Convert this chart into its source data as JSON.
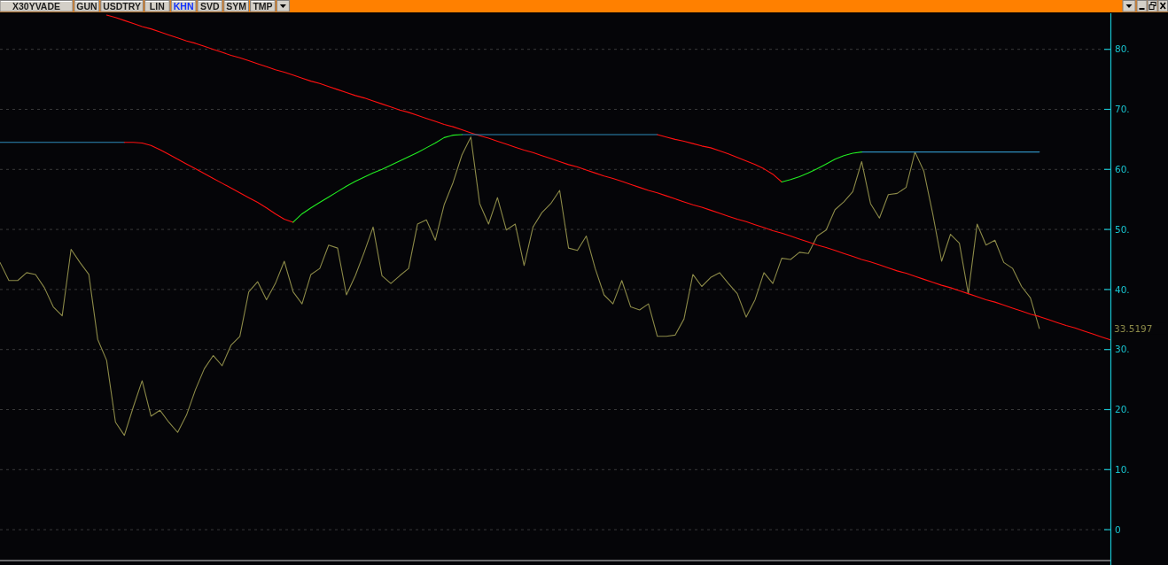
{
  "chart_data": {
    "type": "line",
    "title": "X30YVADE",
    "annotations": [
      "GUN",
      "USDTRY",
      "LIN",
      "KHN",
      "SVD",
      "SYM",
      "TMP",
      "33.5197"
    ],
    "categories": [
      null,
      null,
      null,
      null,
      null,
      null,
      null,
      null,
      null,
      null,
      null,
      null,
      null,
      null,
      null,
      null,
      null,
      null,
      null,
      null,
      null,
      null,
      null,
      null,
      null,
      null,
      null,
      null,
      null,
      null,
      null,
      null,
      null,
      null,
      null,
      null,
      null,
      null,
      null,
      null,
      null,
      null,
      null,
      null,
      null,
      null,
      null,
      null,
      null,
      null,
      null,
      null,
      null,
      null,
      null,
      null,
      null,
      null,
      null,
      null,
      null,
      null,
      null,
      null,
      null,
      null,
      null,
      null,
      null,
      null,
      null,
      null,
      null,
      null,
      null,
      null,
      null,
      null,
      null,
      null,
      null,
      null,
      null,
      null,
      null,
      null,
      null,
      null,
      null,
      null,
      null,
      null,
      null,
      null,
      null,
      null,
      null,
      null,
      null,
      null,
      null,
      null,
      null,
      null,
      null,
      null,
      null,
      null,
      null,
      null,
      null,
      null,
      null,
      null,
      null,
      null,
      null,
      null,
      null,
      null,
      null,
      null,
      null,
      null,
      null,
      null
    ],
    "ylim": [
      -5,
      86
    ],
    "yticks": [
      0,
      {
        "value": 10,
        "label": "10."
      },
      {
        "value": 20,
        "label": "20."
      },
      {
        "value": 30,
        "label": "30."
      },
      {
        "value": 40,
        "label": "40."
      },
      {
        "value": 50,
        "label": "50."
      },
      {
        "value": 60,
        "label": "60."
      },
      {
        "value": 70,
        "label": "70."
      },
      {
        "value": 80,
        "label": "80."
      }
    ],
    "grid": "y",
    "tick_labels": "y",
    "series": [
      {
        "color": "#8c8a48",
        "values": [
          44.5,
          41.5,
          41.5,
          42.8,
          42.5,
          40.3,
          37.1,
          35.6,
          46.7,
          44.5,
          42.5,
          31.7,
          28.2,
          17.9,
          15.7,
          20.4,
          24.8,
          18.9,
          19.9,
          17.9,
          16.2,
          19.1,
          23.3,
          26.8,
          29.0,
          27.3,
          30.7,
          32.2,
          39.6,
          41.3,
          38.3,
          41.0,
          44.7,
          39.6,
          37.6,
          42.5,
          43.5,
          47.4,
          46.9,
          39.1,
          42.3,
          46.2,
          50.4,
          42.3,
          41.0,
          42.3,
          43.5,
          50.9,
          51.6,
          48.2,
          54.1,
          57.8,
          62.4,
          65.4,
          54.3,
          50.9,
          55.3,
          49.9,
          50.9,
          44.0,
          50.4,
          52.8,
          54.3,
          56.5,
          46.9,
          46.5,
          48.9,
          43.5,
          39.1,
          37.6,
          41.5,
          37.1,
          36.6,
          37.6,
          32.2,
          32.2,
          32.4,
          35.1,
          42.5,
          40.5,
          42.0,
          42.8,
          41.0,
          39.3,
          35.4,
          38.3,
          42.8,
          41.0,
          45.2,
          45.0,
          46.2,
          46.0,
          48.9,
          49.9,
          53.3,
          54.6,
          56.3,
          61.3,
          54.3,
          51.9,
          55.8,
          56.0,
          57.0,
          62.9,
          59.7,
          52.6,
          44.7,
          49.2,
          47.7,
          39.3,
          50.9,
          47.4,
          48.2,
          44.5,
          43.5,
          40.5,
          38.6,
          33.5,
          null,
          null,
          null,
          null,
          null,
          null,
          null,
          null
        ]
      },
      {
        "color": "#ff1010",
        "values": [
          null,
          null,
          null,
          null,
          null,
          null,
          null,
          null,
          null,
          null,
          null,
          null,
          85.7,
          85.3,
          84.8,
          84.3,
          83.8,
          83.4,
          82.9,
          82.4,
          81.9,
          81.4,
          81.0,
          80.5,
          80.0,
          79.5,
          79.0,
          78.6,
          78.1,
          77.6,
          77.1,
          76.6,
          76.2,
          75.7,
          75.2,
          74.7,
          74.3,
          73.8,
          73.3,
          72.8,
          72.3,
          71.9,
          71.4,
          70.9,
          70.4,
          69.9,
          69.5,
          69.0,
          68.5,
          68.0,
          67.5,
          67.1,
          66.6,
          66.1,
          65.6,
          65.2,
          64.7,
          64.2,
          63.7,
          63.2,
          62.8,
          62.3,
          61.8,
          61.3,
          60.8,
          60.4,
          59.9,
          59.4,
          58.9,
          58.5,
          58.0,
          57.5,
          57.0,
          56.5,
          56.1,
          55.6,
          55.1,
          54.6,
          54.1,
          53.7,
          53.2,
          52.7,
          52.2,
          51.7,
          51.3,
          50.8,
          50.3,
          49.8,
          49.4,
          48.9,
          48.4,
          47.9,
          47.4,
          47.0,
          46.5,
          46.0,
          45.5,
          45.0,
          44.6,
          44.1,
          43.6,
          43.1,
          42.7,
          42.2,
          41.7,
          41.2,
          40.7,
          40.3,
          39.8,
          39.3,
          38.8,
          38.3,
          37.9,
          37.4,
          36.9,
          36.4,
          35.9,
          35.5,
          35.0,
          34.5,
          34.0,
          33.6,
          33.1,
          32.6,
          32.1,
          31.6
        ]
      },
      {
        "color": "#2f8cba",
        "values": [
          64.5,
          64.5,
          64.5,
          64.5,
          64.5,
          64.5,
          64.5,
          64.5,
          64.5,
          64.5,
          64.5,
          64.5,
          64.5,
          64.5,
          64.5,
          null,
          null,
          null,
          null,
          null,
          null,
          null,
          null,
          null,
          null,
          null,
          null,
          null,
          null,
          null,
          null,
          null,
          null,
          null,
          null,
          null,
          null,
          null,
          null,
          null,
          null,
          null,
          null,
          null,
          null,
          null,
          null,
          null,
          null,
          null,
          null,
          null,
          65.8,
          65.8,
          65.8,
          65.8,
          65.8,
          65.8,
          65.8,
          65.8,
          65.8,
          65.8,
          65.8,
          65.8,
          65.8,
          65.8,
          65.8,
          65.8,
          65.8,
          65.8,
          65.8,
          65.8,
          65.8,
          65.8,
          65.8,
          null,
          null,
          null,
          null,
          null,
          null,
          null,
          null,
          null,
          null,
          null,
          null,
          null,
          null,
          null,
          null,
          null,
          null,
          null,
          null,
          null,
          null,
          62.9,
          62.9,
          62.9,
          62.9,
          62.9,
          62.9,
          62.9,
          62.9,
          62.9,
          62.9,
          62.9,
          62.9,
          62.9,
          62.9,
          62.9,
          62.9,
          62.9,
          62.9,
          62.9,
          62.9,
          62.9,
          null,
          null,
          null,
          null,
          null,
          null,
          null,
          null
        ]
      },
      {
        "color": "#ff1010",
        "values": [
          null,
          null,
          null,
          null,
          null,
          null,
          null,
          null,
          null,
          null,
          null,
          null,
          null,
          null,
          64.5,
          64.5,
          64.4,
          64.0,
          63.3,
          62.5,
          61.7,
          60.9,
          60.1,
          59.3,
          58.5,
          57.7,
          56.9,
          56.1,
          55.3,
          54.5,
          53.6,
          52.6,
          51.7,
          51.2,
          null,
          null,
          null,
          null,
          null,
          null,
          null,
          null,
          null,
          null,
          null,
          null,
          null,
          null,
          null,
          null,
          null,
          null,
          null,
          null,
          null,
          null,
          null,
          null,
          null,
          null,
          null,
          null,
          null,
          null,
          null,
          null,
          null,
          null,
          null,
          null,
          null,
          null,
          null,
          null,
          65.8,
          65.4,
          65.0,
          64.7,
          64.3,
          63.9,
          63.6,
          63.1,
          62.6,
          62.0,
          61.4,
          60.8,
          60.1,
          59.2,
          57.9,
          null,
          null,
          null,
          null,
          null,
          null,
          null,
          null,
          null,
          null,
          null,
          null,
          null,
          null,
          null,
          null,
          null,
          null,
          null,
          null,
          null,
          null,
          null,
          null,
          null,
          null,
          null,
          null,
          null,
          null,
          null,
          null,
          null,
          null,
          null,
          null,
          null
        ]
      },
      {
        "color": "#22ee22",
        "values": [
          null,
          null,
          null,
          null,
          null,
          null,
          null,
          null,
          null,
          null,
          null,
          null,
          null,
          null,
          null,
          null,
          null,
          null,
          null,
          null,
          null,
          null,
          null,
          null,
          null,
          null,
          null,
          null,
          null,
          null,
          null,
          null,
          null,
          51.2,
          52.6,
          53.6,
          54.5,
          55.4,
          56.3,
          57.2,
          58.0,
          58.7,
          59.4,
          60.0,
          60.7,
          61.4,
          62.1,
          62.8,
          63.6,
          64.4,
          65.3,
          65.7,
          65.8,
          null,
          null,
          null,
          null,
          null,
          null,
          null,
          null,
          null,
          null,
          null,
          null,
          null,
          null,
          null,
          null,
          null,
          null,
          null,
          null,
          null,
          null,
          null,
          null,
          null,
          null,
          null,
          null,
          null,
          null,
          null,
          null,
          null,
          null,
          null,
          57.9,
          58.3,
          58.8,
          59.4,
          60.1,
          60.9,
          61.7,
          62.3,
          62.7,
          62.9,
          null,
          null,
          null,
          null,
          null,
          null,
          null,
          null,
          null,
          null,
          null,
          null,
          null,
          null,
          null,
          null,
          null,
          null,
          null,
          null,
          null,
          null,
          null,
          null,
          null,
          null,
          null,
          null
        ]
      }
    ]
  }
}
